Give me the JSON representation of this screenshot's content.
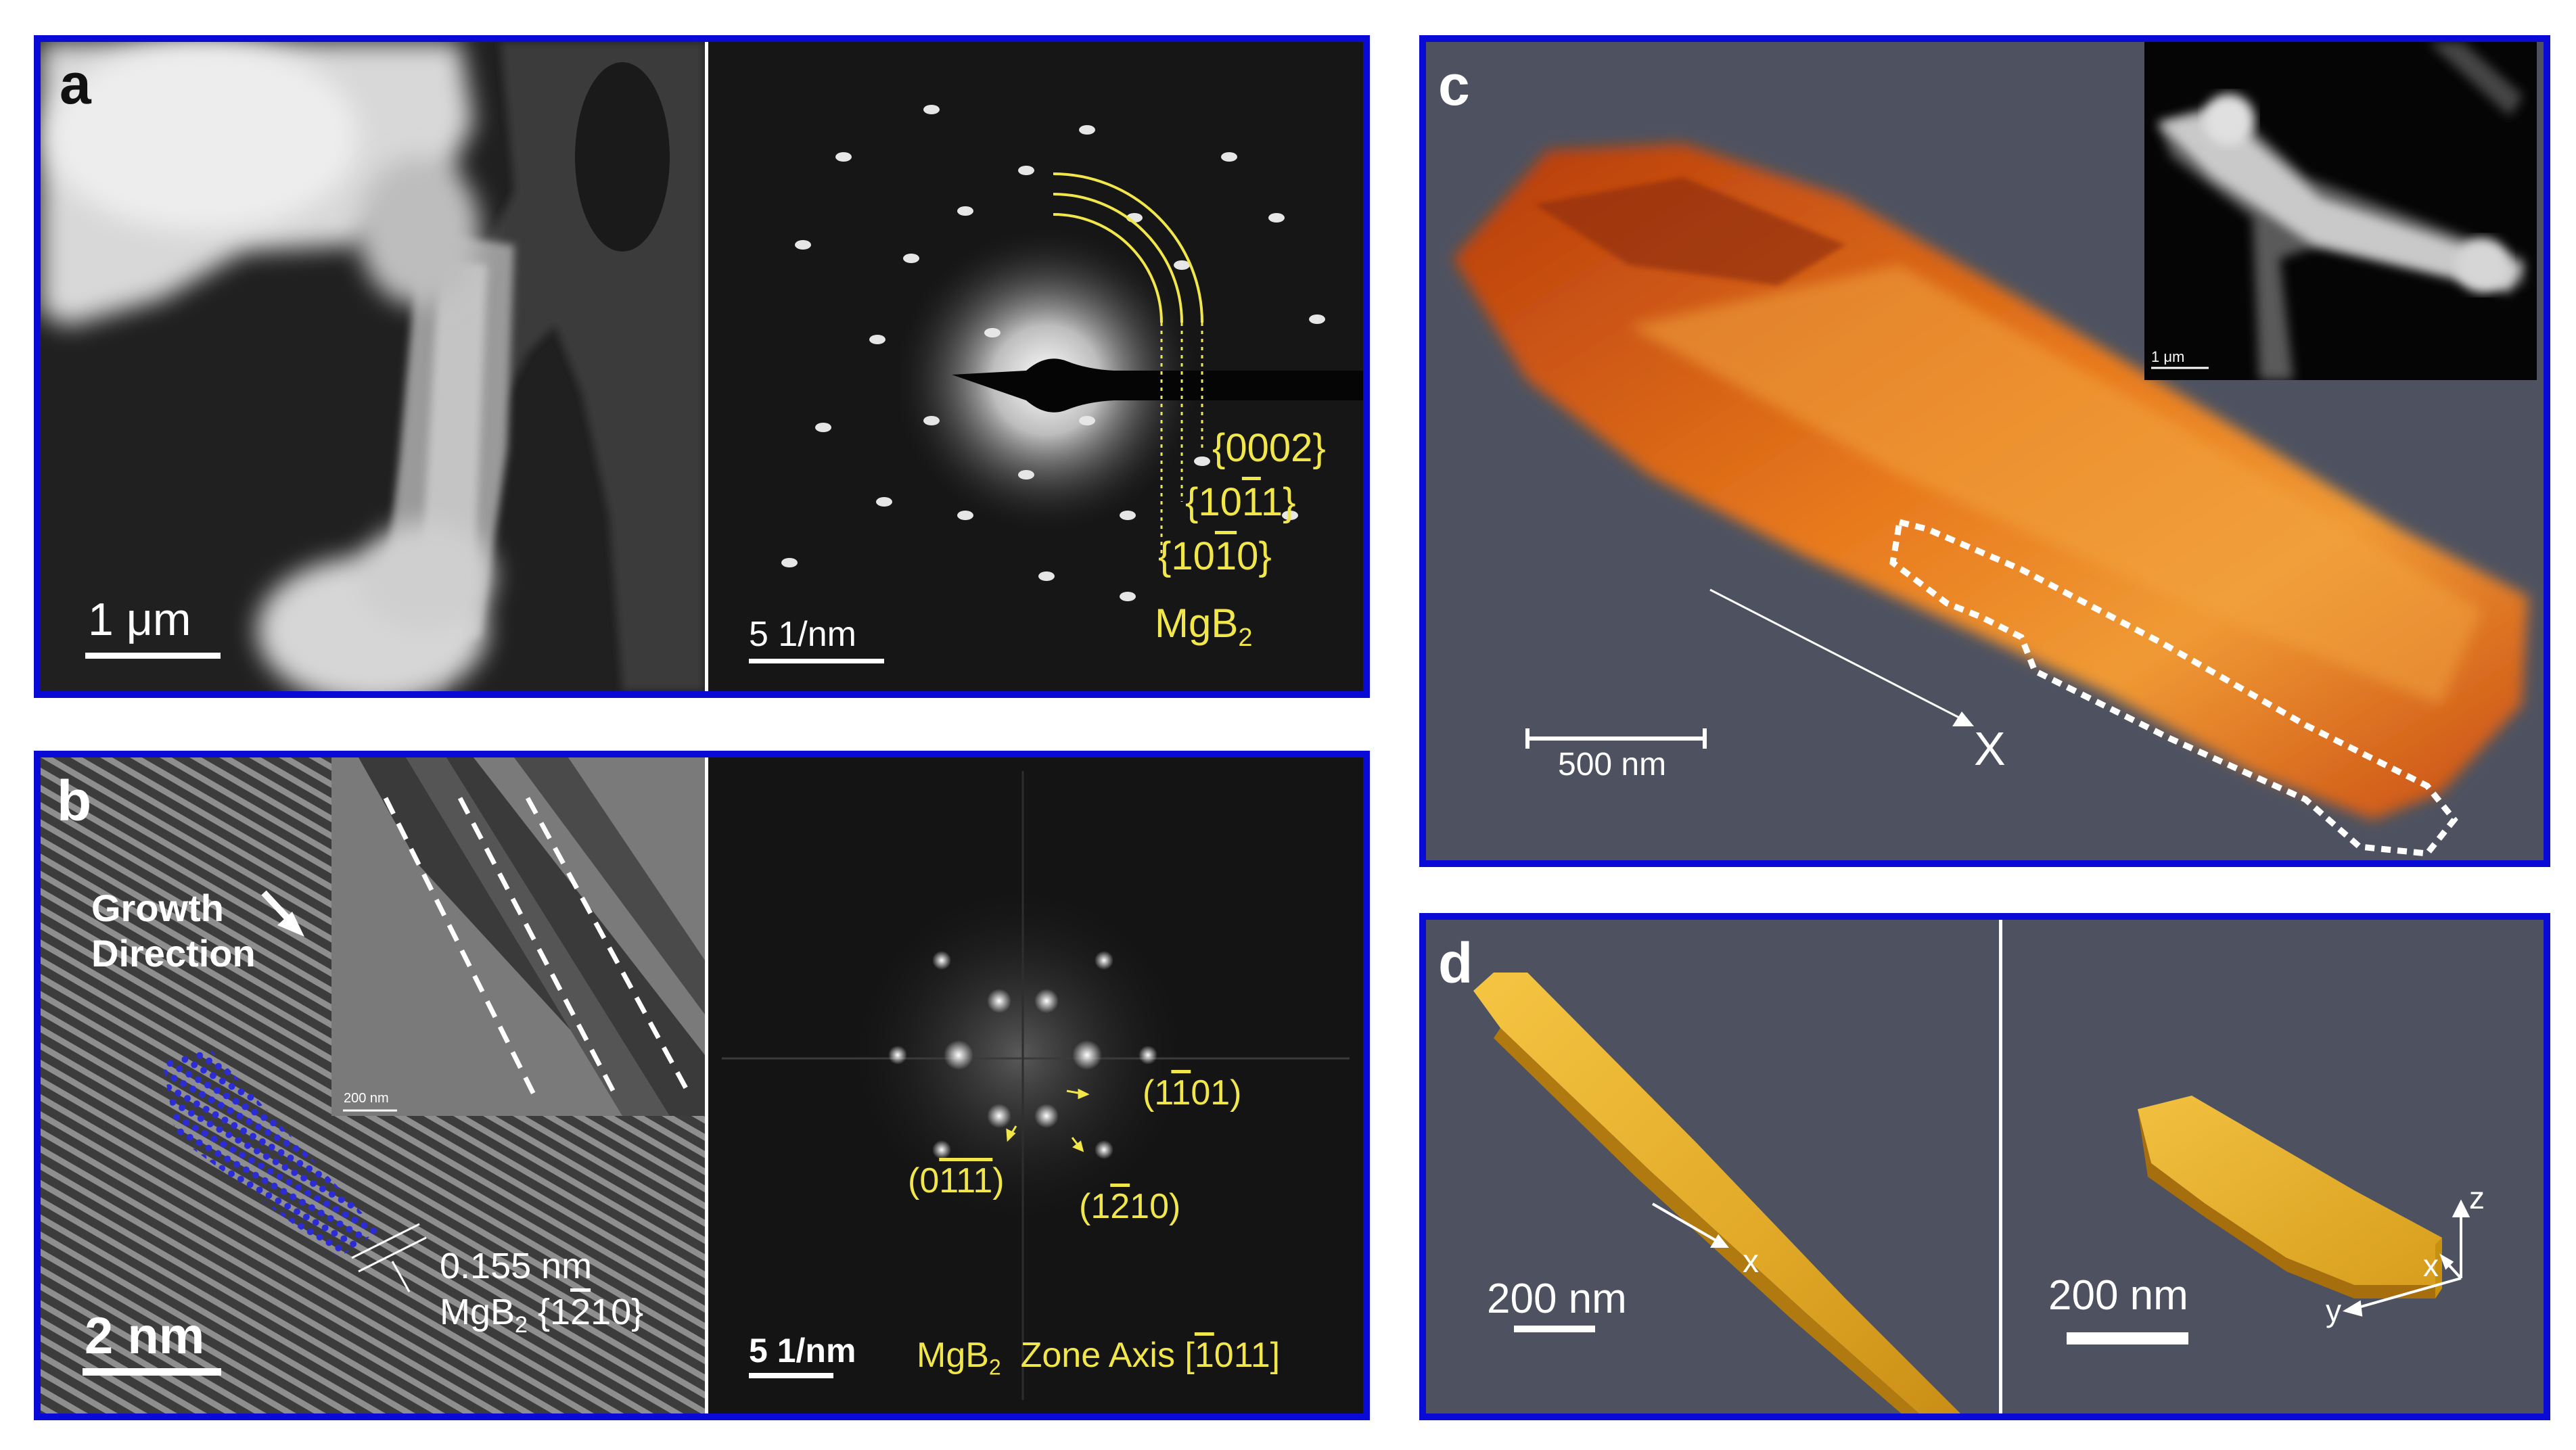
{
  "panels": {
    "a": {
      "label": "a",
      "left_scale": "1 μm",
      "right_scale": "5 1/nm",
      "ring_labels": [
        {
          "pre": "{000",
          "bar": "",
          "post": "2}"
        },
        {
          "pre": "{10",
          "bar": "1",
          "post": "1}"
        },
        {
          "pre": "{10",
          "bar": "1",
          "post": "0}"
        }
      ],
      "material": {
        "main": "MgB",
        "sub": "2"
      }
    },
    "b": {
      "label": "b",
      "growth_line1": "Growth",
      "growth_line2": "Direction",
      "inset_scale": "200 nm",
      "spacing": "0.155 nm",
      "plane": {
        "mat": "MgB",
        "sub": "2",
        "pre": " {1",
        "bar": "2",
        "post": "10}"
      },
      "left_scale": "2 nm",
      "right_scale": "5 1/nm",
      "spots": [
        {
          "pre": "(1",
          "bar": "1",
          "post": "01)"
        },
        {
          "pre": "(0",
          "bar": "111",
          "post": ")"
        },
        {
          "pre": "(1",
          "bar": "2",
          "post": "10)"
        }
      ],
      "zone": {
        "mat": "MgB",
        "sub": "2",
        "pre": "  Zone Axis [",
        "bar": "1",
        "post": "011]"
      }
    },
    "c": {
      "label": "c",
      "scale": "500 nm",
      "inset_scale": "1 μm",
      "axis": "X"
    },
    "d": {
      "label": "d",
      "left_scale": "200 nm",
      "right_scale": "200 nm",
      "left_axis": "x",
      "axes": {
        "z": "z",
        "x": "x",
        "y": "y"
      }
    }
  },
  "colors": {
    "border": "#0a0ad6",
    "annotation": "#f1e64a",
    "background_dark": "#1e1e1e",
    "tomo_bg": "#4e5260"
  }
}
